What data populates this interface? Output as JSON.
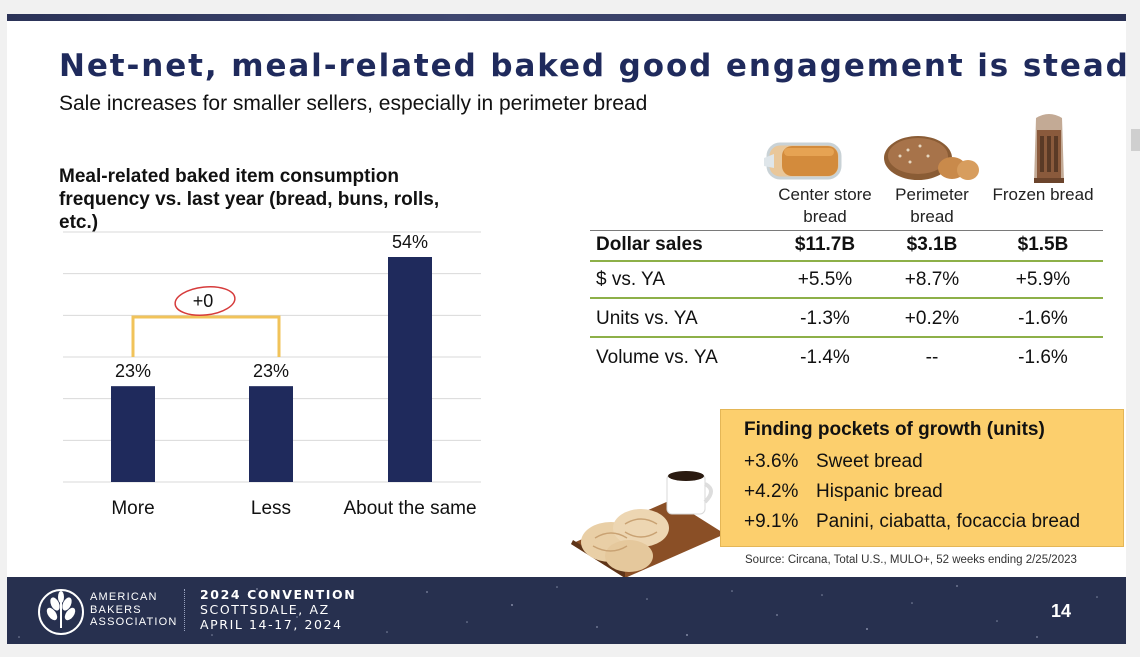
{
  "slide": {
    "title": "Net-net, meal-related baked good engagement is steady",
    "subtitle": "Sale increases for smaller sellers, especially in perimeter bread",
    "page_number": "14"
  },
  "chart_data": {
    "type": "bar",
    "title": "Meal-related baked item consumption frequency vs. last year (bread, buns, rolls, etc.)",
    "categories": [
      "More",
      "Less",
      "About the same"
    ],
    "values": [
      23,
      23,
      54
    ],
    "data_labels": [
      "23%",
      "23%",
      "54%"
    ],
    "ylim": [
      0,
      60
    ],
    "grid": true,
    "bar_color": "#1f2a5c",
    "annotation": {
      "text": "+0",
      "between": [
        "More",
        "Less"
      ]
    }
  },
  "dollar_table": {
    "columns": [
      "Center store bread",
      "Perimeter bread",
      "Frozen bread"
    ],
    "column_images": [
      "sliced-loaf",
      "round-loaf",
      "frozen-bread-bag"
    ],
    "rows": [
      {
        "label": "Dollar sales",
        "values": [
          "$11.7B",
          "$3.1B",
          "$1.5B"
        ]
      },
      {
        "label": "$ vs. YA",
        "values": [
          "+5.5%",
          "+8.7%",
          "+5.9%"
        ]
      },
      {
        "label": "Units vs. YA",
        "values": [
          "-1.3%",
          "+0.2%",
          "-1.6%"
        ]
      },
      {
        "label": "Volume vs. YA",
        "values": [
          "-1.4%",
          "--",
          "-1.6%"
        ]
      }
    ]
  },
  "growth_box": {
    "title": "Finding pockets of growth (units)",
    "items": [
      {
        "pct": "+3.6%",
        "label": "Sweet bread"
      },
      {
        "pct": "+4.2%",
        "label": "Hispanic bread"
      },
      {
        "pct": "+9.1%",
        "label": "Panini, ciabatta, focaccia bread"
      }
    ]
  },
  "source": "Source: Circana, Total U.S., MULO+, 52 weeks ending 2/25/2023",
  "footer": {
    "org_lines": [
      "AMERICAN",
      "BAKERS",
      "ASSOCIATION"
    ],
    "convention_title": "2024 CONVENTION",
    "location": "SCOTTSDALE, AZ",
    "dates": "APRIL 14-17, 2024"
  },
  "colors": {
    "title": "#1f2a5c",
    "bar": "#1f2a5c",
    "table_rule": "#8db048",
    "growth_box": "#fccf6d",
    "footer_bg": "#27304f",
    "bracket": "#f1c35a",
    "annotation_circle": "#d63b3b"
  }
}
